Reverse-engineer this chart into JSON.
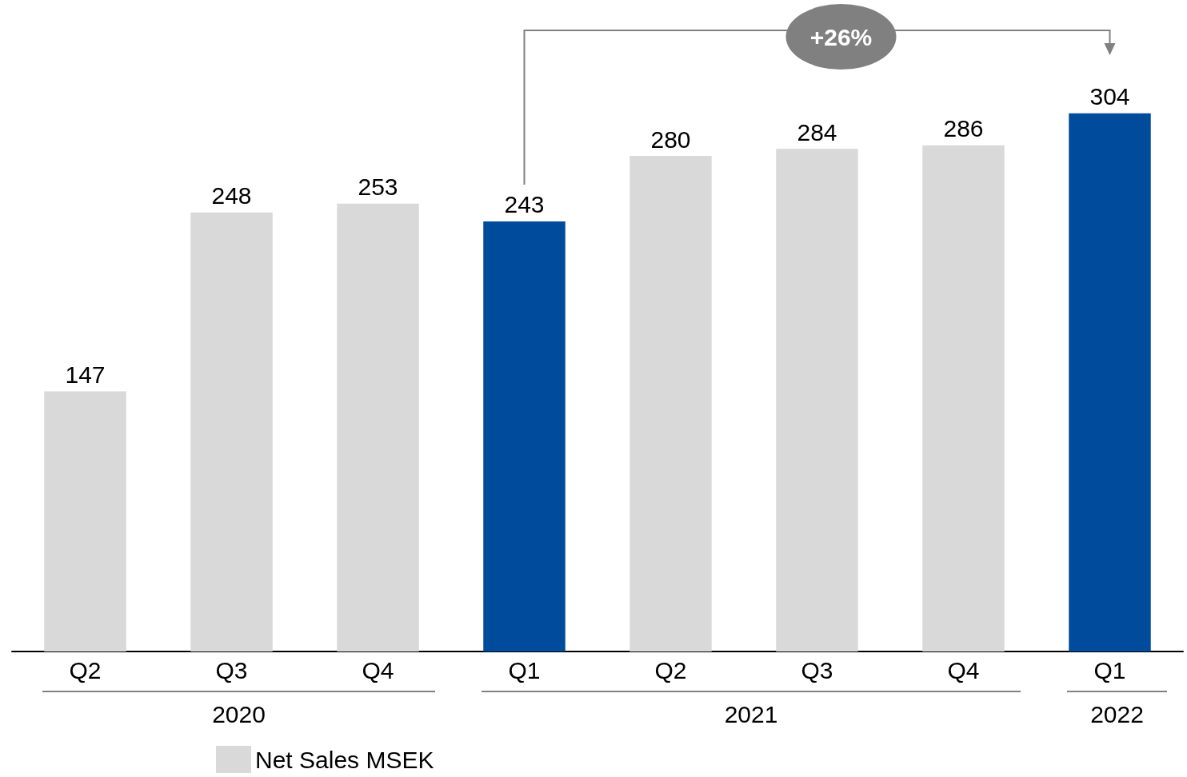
{
  "chart_data": {
    "type": "bar",
    "categories": [
      "Q2",
      "Q3",
      "Q4",
      "Q1",
      "Q2",
      "Q3",
      "Q4",
      "Q1"
    ],
    "series": [
      {
        "name": "Net Sales MSEK",
        "color": "#d9d9d9",
        "values": [
          147,
          248,
          253,
          243,
          280,
          284,
          286,
          304
        ],
        "colors": [
          "#d9d9d9",
          "#d9d9d9",
          "#d9d9d9",
          "#004b9c",
          "#d9d9d9",
          "#d9d9d9",
          "#d9d9d9",
          "#004b9c"
        ]
      }
    ],
    "data_labels": true,
    "legend": "bottom",
    "tick_labels": "x",
    "annotations": [
      "+26%",
      "2020",
      "2021",
      "2022"
    ]
  }
}
